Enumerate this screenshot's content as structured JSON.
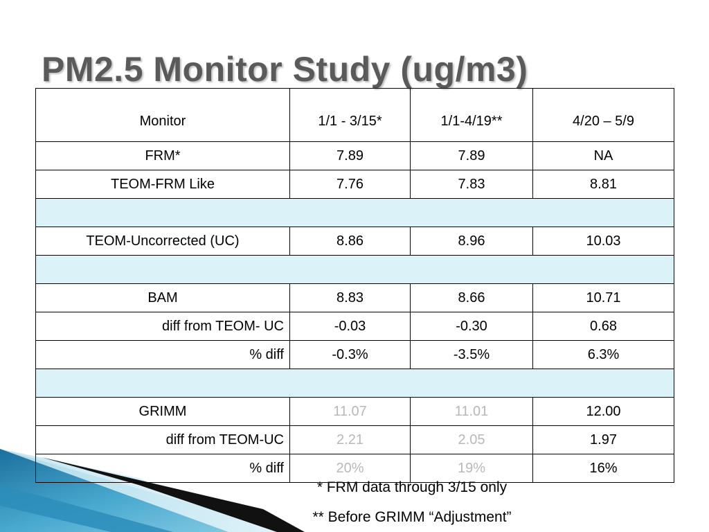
{
  "title": "PM2.5 Monitor Study (ug/m3)",
  "colors": {
    "title": "#5a5a5a",
    "spacer_row": "#dbf3f8",
    "faded_value": "#b8b8b8",
    "deco_blue": "#2e86b4"
  },
  "table": {
    "headers": [
      "Monitor",
      "1/1 - 3/15*",
      "1/1-4/19**",
      "4/20 – 5/9"
    ],
    "rows": [
      {
        "label": "FRM*",
        "values": [
          "7.89",
          "7.89",
          "NA"
        ]
      },
      {
        "label": "TEOM-FRM Like",
        "values": [
          "7.76",
          "7.83",
          "8.81"
        ]
      },
      {
        "label": "TEOM-Uncorrected (UC)",
        "values": [
          "8.86",
          "8.96",
          "10.03"
        ]
      },
      {
        "label": "BAM",
        "values": [
          "8.83",
          "8.66",
          "10.71"
        ]
      },
      {
        "label": "diff from TEOM- UC",
        "values": [
          "-0.03",
          "-0.30",
          "0.68"
        ]
      },
      {
        "label": "% diff",
        "values": [
          "-0.3%",
          "-3.5%",
          "6.3%"
        ]
      },
      {
        "label": "GRIMM",
        "values": [
          "11.07",
          "11.01",
          "12.00"
        ]
      },
      {
        "label": "diff from TEOM-UC",
        "values": [
          "2.21",
          "2.05",
          "1.97"
        ]
      },
      {
        "label": "% diff",
        "values": [
          "20%",
          "19%",
          "16%"
        ]
      }
    ]
  },
  "notes": [
    "* FRM data through 3/15 only",
    "** Before GRIMM “Adjustment”"
  ]
}
